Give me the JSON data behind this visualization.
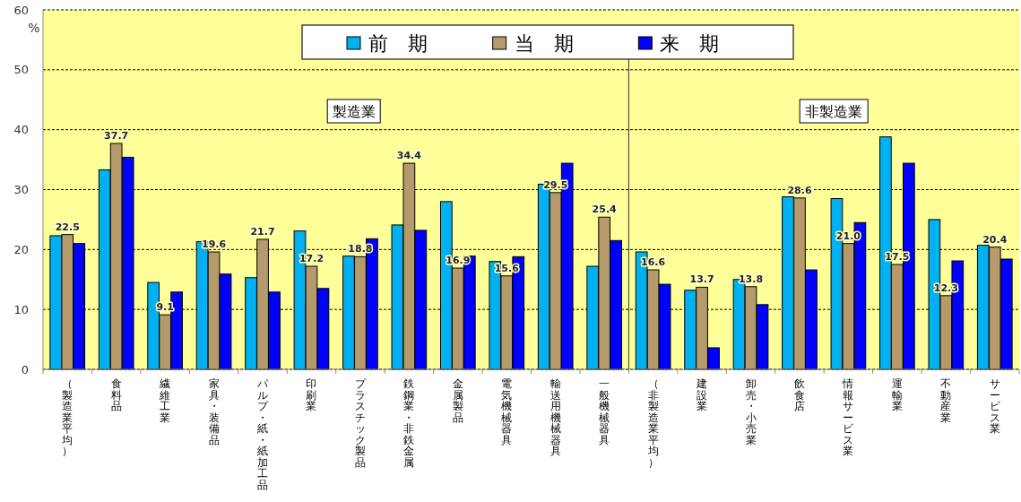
{
  "chart_data": {
    "type": "bar",
    "ylabel": "%",
    "categories": [
      "（製造業平均）",
      "食料品",
      "繊維工業",
      "家具・装備品",
      "パルプ・紙・紙加工品",
      "印刷業",
      "プラスチック製品",
      "鉄鋼業・非鉄金属",
      "金属製品",
      "電気機械器具",
      "輸送用機械器具",
      "一般機械器具",
      "（非製造業平均）",
      "建設業",
      "卸売・小売業",
      "飲食店",
      "情報サービス業",
      "運輸業",
      "不動産業",
      "サービス業"
    ],
    "series": [
      {
        "name": "前　期",
        "color": "#00b0f0",
        "values": [
          22.3,
          33.3,
          14.5,
          21.3,
          15.3,
          23.1,
          18.9,
          24.1,
          28.0,
          18.0,
          30.9,
          17.2,
          19.6,
          13.2,
          15.0,
          28.8,
          28.5,
          38.8,
          25.0,
          20.7
        ]
      },
      {
        "name": "当　期",
        "color": "#b59a6c",
        "values": [
          22.5,
          37.7,
          9.1,
          19.6,
          21.7,
          17.2,
          18.8,
          34.4,
          16.9,
          15.6,
          29.5,
          25.4,
          16.6,
          13.7,
          13.8,
          28.6,
          21.0,
          17.5,
          12.3,
          20.4
        ],
        "value_labels": [
          "22.5",
          "37.7",
          "9.1",
          "19.6",
          "21.7",
          "17.2",
          "18.8",
          "34.4",
          "16.9",
          "15.6",
          "29.5",
          "25.4",
          "16.6",
          "13.7",
          "13.8",
          "28.6",
          "21.0",
          "17.5",
          "12.3",
          "20.4"
        ]
      },
      {
        "name": "来　期",
        "color": "#0000ff",
        "values": [
          21.0,
          35.4,
          12.9,
          15.9,
          12.9,
          13.5,
          21.8,
          23.2,
          18.9,
          18.8,
          34.4,
          21.5,
          14.2,
          3.6,
          10.8,
          16.6,
          24.5,
          34.4,
          18.1,
          18.4
        ]
      }
    ],
    "ylim": [
      0,
      60
    ],
    "yticks": [
      0,
      10,
      20,
      30,
      40,
      50,
      60
    ],
    "grid": "y",
    "legend": "top",
    "ref_lines": [
      {
        "axis": "x",
        "value": "（非製造業平均）",
        "color": "#333333"
      }
    ],
    "annotations": [
      "製造業",
      "非製造業"
    ]
  }
}
